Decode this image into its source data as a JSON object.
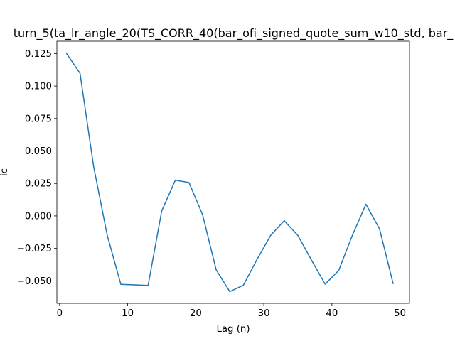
{
  "chart_data": {
    "type": "line",
    "title": "turn_5(ta_lr_angle_20(TS_CORR_40(bar_ofi_signed_quote_sum_w10_std, bar_",
    "xlabel": "Lag (n)",
    "ylabel": "ic",
    "xlim": [
      -0.4,
      51.4
    ],
    "ylim": [
      -0.0673,
      0.1345
    ],
    "x_ticks": [
      0,
      10,
      20,
      30,
      40,
      50
    ],
    "y_ticks": [
      -0.05,
      -0.025,
      0.0,
      0.025,
      0.05,
      0.075,
      0.1,
      0.125
    ],
    "x_tick_labels": [
      "0",
      "10",
      "20",
      "30",
      "40",
      "50"
    ],
    "y_tick_labels": [
      "−0.050",
      "−0.025",
      "0.000",
      "0.025",
      "0.050",
      "0.075",
      "0.100",
      "0.125"
    ],
    "grid": false,
    "line_color": "#1f77b4",
    "series": [
      {
        "x": [
          1,
          3,
          5,
          7,
          9,
          11,
          13,
          15,
          17,
          19,
          21,
          23,
          25,
          27,
          29,
          31,
          33,
          35,
          37,
          39,
          41,
          43,
          45,
          47,
          49
        ],
        "values": [
          0.1252,
          0.1098,
          0.038,
          -0.015,
          -0.0527,
          -0.0531,
          -0.0535,
          0.0038,
          0.0275,
          0.0257,
          0.001,
          -0.0415,
          -0.0583,
          -0.0533,
          -0.0335,
          -0.015,
          -0.0037,
          -0.015,
          -0.034,
          -0.0525,
          -0.042,
          -0.015,
          0.009,
          -0.01,
          -0.0522
        ]
      }
    ]
  }
}
